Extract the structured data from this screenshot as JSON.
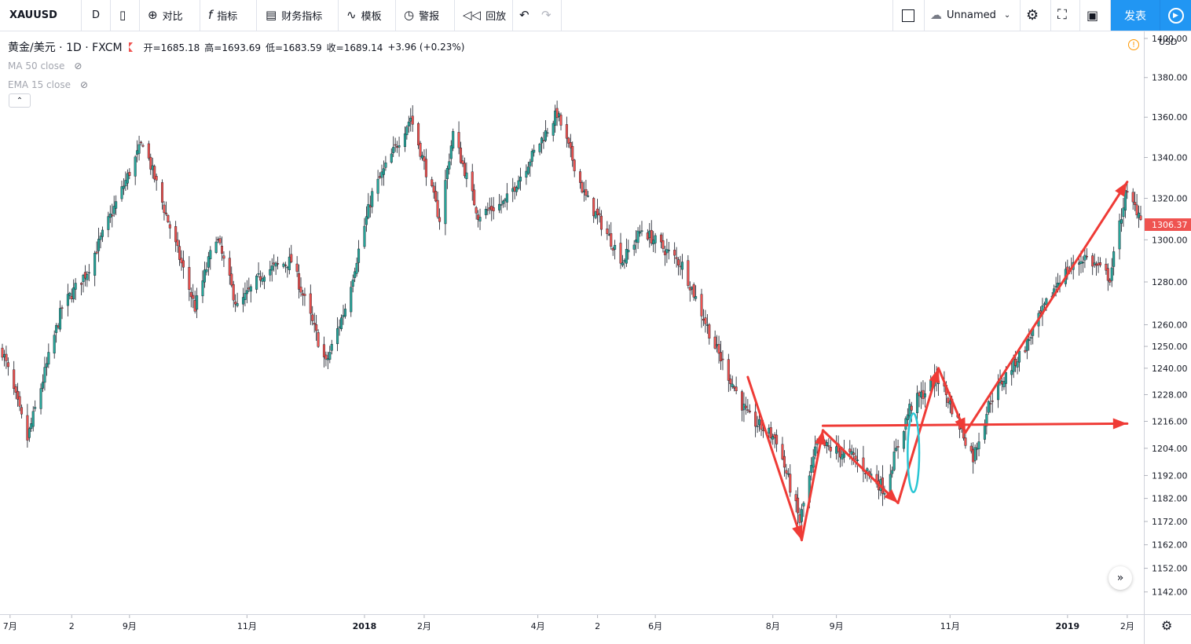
{
  "toolbar": {
    "symbol": "XAUUSD",
    "interval": "D",
    "compare_label": "对比",
    "indicators_label": "指标",
    "financials_label": "财务指标",
    "templates_label": "模板",
    "alert_label": "警报",
    "replay_label": "回放",
    "layout_name": "Unnamed",
    "publish_label": "发表"
  },
  "legend": {
    "title": "黄金/美元 · 1D · FXCM",
    "ohlc": {
      "open_label": "开=",
      "open": "1685.18",
      "high_label": "高=",
      "high": "1693.69",
      "low_label": "低=",
      "low": "1683.59",
      "close_label": "收=",
      "close": "1689.14",
      "change": "+3.96 (+0.23%)"
    },
    "indicators": [
      "MA 50 close",
      "EMA 15 close"
    ]
  },
  "price_axis": {
    "currency": "USD",
    "last_price": "1306.37",
    "ticks": [
      "1400.00",
      "1380.00",
      "1360.00",
      "1340.00",
      "1320.00",
      "1300.00",
      "1280.00",
      "1260.00",
      "1250.00",
      "1240.00",
      "1228.00",
      "1216.00",
      "1204.00",
      "1192.00",
      "1182.00",
      "1172.00",
      "1162.00",
      "1152.00",
      "1142.00"
    ]
  },
  "time_axis": {
    "ticks": [
      "7月",
      "2",
      "9月",
      "11月",
      "2018",
      "2月",
      "4月",
      "2",
      "6月",
      "8月",
      "9月",
      "11月",
      "2019",
      "2月"
    ]
  },
  "colors": {
    "up": "#26a69a",
    "down": "#ef5350",
    "ink": "#131722",
    "annotation_arrow": "#ef3b36",
    "annotation_ellipse": "#29c6d4",
    "accent": "#2196f3"
  },
  "chart_data": {
    "type": "candlestick",
    "symbol": "XAUUSD",
    "interval": "1D",
    "y_scale": "log",
    "ylim": [
      1135,
      1402
    ],
    "x_range": [
      "2017-06-27",
      "2019-02-08"
    ],
    "anchors": [
      [
        "2017-06-27",
        1248
      ],
      [
        "2017-07-10",
        1208
      ],
      [
        "2017-07-28",
        1268
      ],
      [
        "2017-08-10",
        1285
      ],
      [
        "2017-09-08",
        1348
      ],
      [
        "2017-09-20",
        1312
      ],
      [
        "2017-10-05",
        1268
      ],
      [
        "2017-10-16",
        1302
      ],
      [
        "2017-10-27",
        1268
      ],
      [
        "2017-11-10",
        1285
      ],
      [
        "2017-11-24",
        1290
      ],
      [
        "2017-12-12",
        1242
      ],
      [
        "2017-12-22",
        1268
      ],
      [
        "2018-01-05",
        1322
      ],
      [
        "2018-01-25",
        1360
      ],
      [
        "2018-02-09",
        1310
      ],
      [
        "2018-02-16",
        1352
      ],
      [
        "2018-03-01",
        1312
      ],
      [
        "2018-03-15",
        1318
      ],
      [
        "2018-04-11",
        1362
      ],
      [
        "2018-04-25",
        1322
      ],
      [
        "2018-05-15",
        1290
      ],
      [
        "2018-05-25",
        1305
      ],
      [
        "2018-06-15",
        1288
      ],
      [
        "2018-07-02",
        1250
      ],
      [
        "2018-07-19",
        1218
      ],
      [
        "2018-08-03",
        1208
      ],
      [
        "2018-08-15",
        1172
      ],
      [
        "2018-08-24",
        1206
      ],
      [
        "2018-09-12",
        1200
      ],
      [
        "2018-09-28",
        1186
      ],
      [
        "2018-10-11",
        1222
      ],
      [
        "2018-10-26",
        1236
      ],
      [
        "2018-11-13",
        1200
      ],
      [
        "2018-11-22",
        1226
      ],
      [
        "2018-12-10",
        1250
      ],
      [
        "2018-12-28",
        1282
      ],
      [
        "2019-01-10",
        1292
      ],
      [
        "2019-01-23",
        1282
      ],
      [
        "2019-01-31",
        1322
      ],
      [
        "2019-02-08",
        1312
      ]
    ],
    "annotations": [
      {
        "kind": "arrow",
        "from": [
          "2018-07-19",
          1236
        ],
        "to": [
          "2018-08-16",
          1164
        ]
      },
      {
        "kind": "arrow",
        "from": [
          "2018-08-16",
          1164
        ],
        "to": [
          "2018-08-27",
          1212
        ]
      },
      {
        "kind": "arrow",
        "from": [
          "2018-08-27",
          1212
        ],
        "to": [
          "2018-10-05",
          1180
        ]
      },
      {
        "kind": "arrow",
        "from": [
          "2018-10-05",
          1180
        ],
        "to": [
          "2018-10-26",
          1240
        ]
      },
      {
        "kind": "arrow",
        "from": [
          "2018-10-26",
          1240
        ],
        "to": [
          "2018-11-09",
          1211
        ]
      },
      {
        "kind": "arrow",
        "from": [
          "2018-11-09",
          1211
        ],
        "to": [
          "2019-02-01",
          1328
        ]
      },
      {
        "kind": "arrow",
        "from": [
          "2018-08-27",
          1214
        ],
        "to": [
          "2019-02-01",
          1215
        ]
      },
      {
        "kind": "ellipse",
        "center": [
          "2018-10-13",
          1202
        ],
        "radii_days": 3,
        "y_span": [
          1190,
          1225
        ]
      }
    ]
  }
}
